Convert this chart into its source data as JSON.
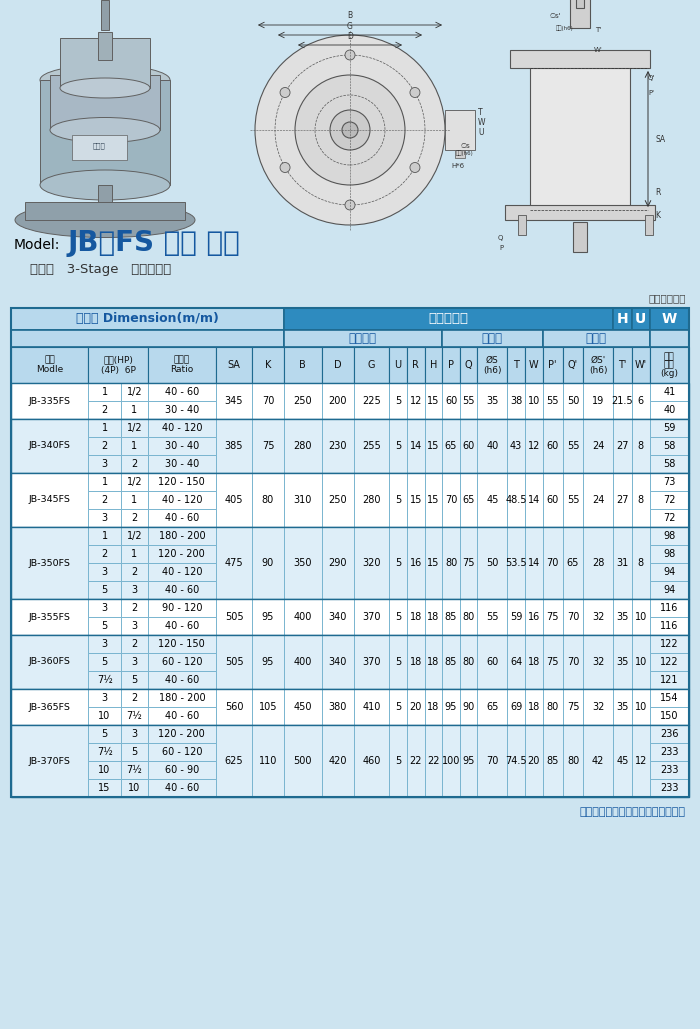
{
  "bg_color": "#cde4f0",
  "title_prefix": "Model:",
  "title_main": "JB～FS 立式 雙軸",
  "subtitle": "三段式   3-Stage   齒輪減速機",
  "table_note": "（表二十八）",
  "footer": "以上尺寸如因設計變更恕不另行通知",
  "header_dim": "尺寸表 Dimension(m/m)",
  "header_dir": "可安裝方向",
  "header_H": "H",
  "header_U": "U",
  "header_W": "W",
  "header_flange": "安裝法蘭",
  "header_output": "出力軸",
  "header_input": "入力軸",
  "col_model": "型號\nModle",
  "col_hp": "馬力(HP)\n(4P)  6P",
  "col_ratio": "減速比\nRatio",
  "col_wt": "大約\n重量\n(kg)",
  "blue_hdr": "#2e8bbf",
  "lt_blue_hdr": "#b8d9ed",
  "row_white": "#ffffff",
  "row_light": "#deeef8",
  "grid_color": "#7ab5d0",
  "dark_border": "#1e6a90",
  "title_color": "#1558a0",
  "rows": [
    {
      "model": "JB-335FS",
      "hp4": [
        "1",
        "2"
      ],
      "hp6": [
        "1/2",
        "1"
      ],
      "ratio": [
        "40 - 60",
        "30 - 40"
      ],
      "SA": "345",
      "K": "70",
      "B": "250",
      "D": "200",
      "G": "225",
      "U": "5",
      "R": "12",
      "H": "15",
      "P": "60",
      "Q": "55",
      "S": "35",
      "T": "38",
      "W": "10",
      "Pp": "55",
      "Qp": "50",
      "Sp": "19",
      "Tp": "21.5",
      "Wp": "6",
      "wt": [
        "41",
        "40"
      ]
    },
    {
      "model": "JB-340FS",
      "hp4": [
        "1",
        "2",
        "3"
      ],
      "hp6": [
        "1/2",
        "1",
        "2"
      ],
      "ratio": [
        "40 - 120",
        "30 - 40",
        "30 - 40"
      ],
      "SA": "385",
      "K": "75",
      "B": "280",
      "D": "230",
      "G": "255",
      "U": "5",
      "R": "14",
      "H": "15",
      "P": "65",
      "Q": "60",
      "S": "40",
      "T": "43",
      "W": "12",
      "Pp": "60",
      "Qp": "55",
      "Sp": "24",
      "Tp": "27",
      "Wp": "8",
      "wt": [
        "59",
        "58",
        "58"
      ]
    },
    {
      "model": "JB-345FS",
      "hp4": [
        "1",
        "2",
        "3"
      ],
      "hp6": [
        "1/2",
        "1",
        "2"
      ],
      "ratio": [
        "120 - 150",
        "40 - 120",
        "40 - 60"
      ],
      "SA": "405",
      "K": "80",
      "B": "310",
      "D": "250",
      "G": "280",
      "U": "5",
      "R": "15",
      "H": "15",
      "P": "70",
      "Q": "65",
      "S": "45",
      "T": "48.5",
      "W": "14",
      "Pp": "60",
      "Qp": "55",
      "Sp": "24",
      "Tp": "27",
      "Wp": "8",
      "wt": [
        "73",
        "72",
        "72"
      ]
    },
    {
      "model": "JB-350FS",
      "hp4": [
        "1",
        "2",
        "3",
        "5"
      ],
      "hp6": [
        "1/2",
        "1",
        "2",
        "3"
      ],
      "ratio": [
        "180 - 200",
        "120 - 200",
        "40 - 120",
        "40 - 60"
      ],
      "SA": "475",
      "K": "90",
      "B": "350",
      "D": "290",
      "G": "320",
      "U": "5",
      "R": "16",
      "H": "15",
      "P": "80",
      "Q": "75",
      "S": "50",
      "T": "53.5",
      "W": "14",
      "Pp": "70",
      "Qp": "65",
      "Sp": "28",
      "Tp": "31",
      "Wp": "8",
      "wt": [
        "98",
        "98",
        "94",
        "94"
      ]
    },
    {
      "model": "JB-355FS",
      "hp4": [
        "3",
        "5"
      ],
      "hp6": [
        "2",
        "3"
      ],
      "ratio": [
        "90 - 120",
        "40 - 60"
      ],
      "SA": "505",
      "K": "95",
      "B": "400",
      "D": "340",
      "G": "370",
      "U": "5",
      "R": "18",
      "H": "18",
      "P": "85",
      "Q": "80",
      "S": "55",
      "T": "59",
      "W": "16",
      "Pp": "75",
      "Qp": "70",
      "Sp": "32",
      "Tp": "35",
      "Wp": "10",
      "wt": [
        "116",
        "116"
      ]
    },
    {
      "model": "JB-360FS",
      "hp4": [
        "3",
        "5",
        "7½"
      ],
      "hp6": [
        "2",
        "3",
        "5"
      ],
      "ratio": [
        "120 - 150",
        "60 - 120",
        "40 - 60"
      ],
      "SA": "505",
      "K": "95",
      "B": "400",
      "D": "340",
      "G": "370",
      "U": "5",
      "R": "18",
      "H": "18",
      "P": "85",
      "Q": "80",
      "S": "60",
      "T": "64",
      "W": "18",
      "Pp": "75",
      "Qp": "70",
      "Sp": "32",
      "Tp": "35",
      "Wp": "10",
      "wt": [
        "122",
        "122",
        "121"
      ]
    },
    {
      "model": "JB-365FS",
      "hp4": [
        "3",
        "10"
      ],
      "hp6": [
        "2",
        "7½"
      ],
      "ratio": [
        "180 - 200",
        "40 - 60"
      ],
      "SA": "560",
      "K": "105",
      "B": "450",
      "D": "380",
      "G": "410",
      "U": "5",
      "R": "20",
      "H": "18",
      "P": "95",
      "Q": "90",
      "S": "65",
      "T": "69",
      "W": "18",
      "Pp": "80",
      "Qp": "75",
      "Sp": "32",
      "Tp": "35",
      "Wp": "10",
      "wt": [
        "154",
        "150"
      ]
    },
    {
      "model": "JB-370FS",
      "hp4": [
        "5",
        "7½",
        "10",
        "15"
      ],
      "hp6": [
        "3",
        "5",
        "7½",
        "10"
      ],
      "ratio": [
        "120 - 200",
        "60 - 120",
        "60 - 90",
        "40 - 60"
      ],
      "SA": "625",
      "K": "110",
      "B": "500",
      "D": "420",
      "G": "460",
      "U": "5",
      "R": "22",
      "H": "22",
      "P": "100",
      "Q": "95",
      "S": "70",
      "T": "74.5",
      "W": "20",
      "Pp": "85",
      "Qp": "80",
      "Sp": "42",
      "Tp": "45",
      "Wp": "12",
      "wt": [
        "236",
        "233",
        "233",
        "233"
      ]
    }
  ]
}
